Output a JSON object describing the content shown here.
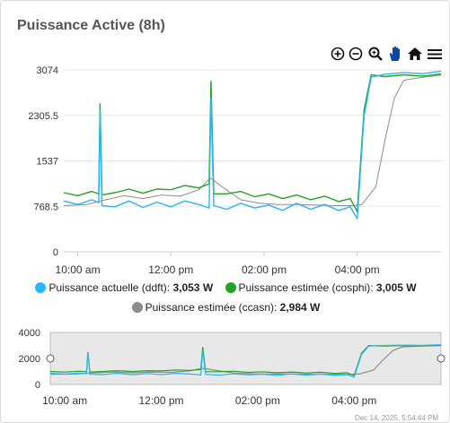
{
  "card": {
    "title": "Puissance Active (8h)",
    "footnote": "Dec 14, 2025, 5:54:44 PM"
  },
  "toolbar": {
    "zoom_in": "zoom-in-icon",
    "zoom_out": "zoom-out-icon",
    "zoom_selection": "magnifier-icon",
    "pan": "hand-icon",
    "reset": "home-icon",
    "menu": "menu-icon"
  },
  "legend": [
    {
      "name": "Puissance actuelle (ddft)",
      "value": "3,053 W",
      "color": "#29B6F6"
    },
    {
      "name": "Puissance estimée (cosphi)",
      "value": "3,005 W",
      "color": "#22A325"
    },
    {
      "name": "Puissance estimée (ccasn)",
      "value": "2,984 W",
      "color": "#8C8C8C"
    }
  ],
  "chart_data": {
    "type": "line",
    "title": "Puissance Active (8h)",
    "x_unit": "hour of day (decimal, 24h)",
    "xlim": [
      9.7,
      17.8
    ],
    "ylim": [
      0,
      3074
    ],
    "yticks": [
      "0",
      "768.5",
      "1537",
      "2305.5",
      "3074"
    ],
    "xticks": [
      {
        "label": "10:00 am",
        "x": 10
      },
      {
        "label": "12:00 pm",
        "x": 12
      },
      {
        "label": "02:00 pm",
        "x": 14
      },
      {
        "label": "04:00 pm",
        "x": 16
      }
    ],
    "series": [
      {
        "name": "Puissance actuelle (ddft)",
        "color": "#29B6F6",
        "points": [
          [
            9.7,
            860
          ],
          [
            10.0,
            800
          ],
          [
            10.3,
            880
          ],
          [
            10.45,
            830
          ],
          [
            10.48,
            2400
          ],
          [
            10.52,
            780
          ],
          [
            10.8,
            760
          ],
          [
            11.1,
            860
          ],
          [
            11.4,
            750
          ],
          [
            11.7,
            840
          ],
          [
            12.0,
            760
          ],
          [
            12.3,
            860
          ],
          [
            12.6,
            800
          ],
          [
            12.82,
            740
          ],
          [
            12.86,
            2600
          ],
          [
            12.92,
            780
          ],
          [
            13.2,
            720
          ],
          [
            13.5,
            820
          ],
          [
            13.8,
            740
          ],
          [
            14.1,
            790
          ],
          [
            14.4,
            700
          ],
          [
            14.7,
            820
          ],
          [
            15.0,
            720
          ],
          [
            15.3,
            800
          ],
          [
            15.6,
            700
          ],
          [
            15.85,
            760
          ],
          [
            16.0,
            560
          ],
          [
            16.15,
            2300
          ],
          [
            16.3,
            2950
          ],
          [
            16.6,
            3000
          ],
          [
            17.0,
            3030
          ],
          [
            17.4,
            3010
          ],
          [
            17.8,
            3053
          ]
        ]
      },
      {
        "name": "Puissance estimée (cosphi)",
        "color": "#22A325",
        "points": [
          [
            9.7,
            1000
          ],
          [
            10.0,
            950
          ],
          [
            10.3,
            1020
          ],
          [
            10.45,
            980
          ],
          [
            10.48,
            2500
          ],
          [
            10.52,
            960
          ],
          [
            10.8,
            1000
          ],
          [
            11.1,
            1060
          ],
          [
            11.4,
            990
          ],
          [
            11.7,
            1060
          ],
          [
            12.0,
            1050
          ],
          [
            12.3,
            1120
          ],
          [
            12.6,
            1080
          ],
          [
            12.82,
            1150
          ],
          [
            12.86,
            2880
          ],
          [
            12.92,
            980
          ],
          [
            13.2,
            980
          ],
          [
            13.5,
            1020
          ],
          [
            13.8,
            930
          ],
          [
            14.1,
            980
          ],
          [
            14.4,
            900
          ],
          [
            14.7,
            960
          ],
          [
            15.0,
            880
          ],
          [
            15.3,
            940
          ],
          [
            15.6,
            850
          ],
          [
            15.85,
            900
          ],
          [
            16.0,
            680
          ],
          [
            16.15,
            2400
          ],
          [
            16.3,
            2990
          ],
          [
            16.6,
            2960
          ],
          [
            17.0,
            2990
          ],
          [
            17.4,
            2970
          ],
          [
            17.8,
            3005
          ]
        ]
      },
      {
        "name": "Puissance estimée (ccasn)",
        "color": "#8C8C8C",
        "points": [
          [
            9.7,
            780
          ],
          [
            10.2,
            800
          ],
          [
            10.6,
            880
          ],
          [
            11.0,
            950
          ],
          [
            11.4,
            900
          ],
          [
            11.8,
            960
          ],
          [
            12.2,
            940
          ],
          [
            12.6,
            1050
          ],
          [
            12.85,
            1250
          ],
          [
            13.1,
            1100
          ],
          [
            13.5,
            880
          ],
          [
            13.9,
            820
          ],
          [
            14.3,
            800
          ],
          [
            14.7,
            800
          ],
          [
            15.1,
            790
          ],
          [
            15.5,
            780
          ],
          [
            15.9,
            780
          ],
          [
            16.1,
            800
          ],
          [
            16.4,
            1100
          ],
          [
            16.6,
            1900
          ],
          [
            16.8,
            2600
          ],
          [
            17.0,
            2900
          ],
          [
            17.4,
            2950
          ],
          [
            17.8,
            2984
          ]
        ]
      }
    ],
    "navigator": {
      "ylim": [
        0,
        4000
      ],
      "yticks": [
        "0",
        "2000",
        "4000"
      ],
      "xticks": [
        {
          "label": "10:00 am",
          "x": 10
        },
        {
          "label": "12:00 pm",
          "x": 12
        },
        {
          "label": "02:00 pm",
          "x": 14
        },
        {
          "label": "04:00 pm",
          "x": 16
        }
      ]
    }
  }
}
